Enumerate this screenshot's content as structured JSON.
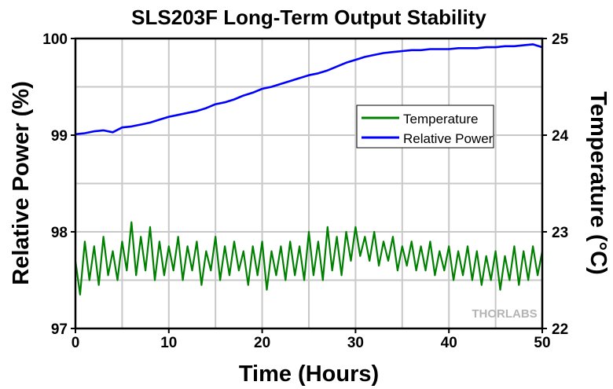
{
  "chart_data": {
    "type": "line",
    "title": "SLS203F Long-Term Output Stability",
    "xlabel": "Time (Hours)",
    "ylabel": "Relative Power (%)",
    "y2label": "Temperature (°C)",
    "xlim": [
      0,
      50
    ],
    "ylim": [
      97,
      100
    ],
    "y2lim": [
      22,
      25
    ],
    "xticks": [
      "0",
      "10",
      "20",
      "30",
      "40",
      "50"
    ],
    "yticks": [
      "97",
      "98",
      "99",
      "100"
    ],
    "y2ticks": [
      "22",
      "23",
      "24",
      "25"
    ],
    "grid": true,
    "legend_position": "upper-right",
    "watermark": "THORLABS",
    "series": [
      {
        "name": "Temperature",
        "axis": "right",
        "color": "#008000",
        "x_step": 0.5,
        "values": [
          22.7,
          22.35,
          22.9,
          22.5,
          22.85,
          22.45,
          22.95,
          22.55,
          22.8,
          22.5,
          22.9,
          22.6,
          23.1,
          22.55,
          22.95,
          22.6,
          23.05,
          22.5,
          22.9,
          22.55,
          22.85,
          22.6,
          22.95,
          22.5,
          22.85,
          22.6,
          22.9,
          22.45,
          22.8,
          22.6,
          22.95,
          22.5,
          22.85,
          22.55,
          22.9,
          22.6,
          22.8,
          22.45,
          22.85,
          22.55,
          22.9,
          22.4,
          22.8,
          22.55,
          22.85,
          22.5,
          22.9,
          22.55,
          22.85,
          22.5,
          23.0,
          22.55,
          22.9,
          22.5,
          23.05,
          22.6,
          22.95,
          22.55,
          23.0,
          22.7,
          23.05,
          22.75,
          22.95,
          22.7,
          23.0,
          22.65,
          22.9,
          22.7,
          22.95,
          22.6,
          22.85,
          22.65,
          22.9,
          22.6,
          22.85,
          22.6,
          22.9,
          22.55,
          22.8,
          22.6,
          22.85,
          22.5,
          22.8,
          22.55,
          22.85,
          22.5,
          22.8,
          22.45,
          22.75,
          22.5,
          22.8,
          22.4,
          22.75,
          22.5,
          22.85,
          22.45,
          22.8,
          22.5,
          22.85,
          22.55,
          22.8
        ]
      },
      {
        "name": "Relative Power",
        "axis": "left",
        "color": "#0000FF",
        "x_step": 1,
        "values": [
          99.01,
          99.02,
          99.04,
          99.05,
          99.03,
          99.08,
          99.09,
          99.11,
          99.13,
          99.16,
          99.19,
          99.21,
          99.23,
          99.25,
          99.28,
          99.32,
          99.34,
          99.37,
          99.41,
          99.44,
          99.48,
          99.5,
          99.53,
          99.56,
          99.59,
          99.62,
          99.64,
          99.67,
          99.71,
          99.75,
          99.78,
          99.81,
          99.83,
          99.85,
          99.86,
          99.87,
          99.88,
          99.88,
          99.89,
          99.89,
          99.89,
          99.9,
          99.9,
          99.9,
          99.91,
          99.91,
          99.92,
          99.92,
          99.93,
          99.94,
          99.91
        ]
      }
    ]
  }
}
